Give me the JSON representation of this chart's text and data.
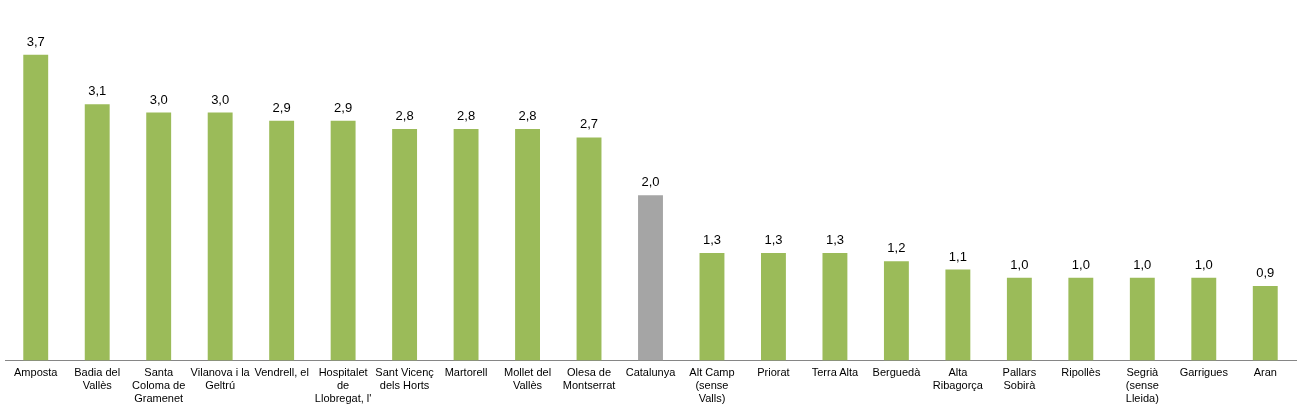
{
  "chart_data": {
    "type": "bar",
    "categories": [
      "Amposta",
      "Badia del Vallès",
      "Santa Coloma de Gramenet",
      "Vilanova i la Geltrú",
      "Vendrell, el",
      "Hospitalet de Llobregat, l'",
      "Sant Vicenç dels Horts",
      "Martorell",
      "Mollet del Vallès",
      "Olesa de Montserrat",
      "Catalunya",
      "Alt Camp (sense Valls)",
      "Priorat",
      "Terra Alta",
      "Berguedà",
      "Alta Ribagorça",
      "Pallars Sobirà",
      "Ripollès",
      "Segrià (sense Lleida)",
      "Garrigues",
      "Aran"
    ],
    "values": [
      3.7,
      3.1,
      3.0,
      3.0,
      2.9,
      2.9,
      2.8,
      2.8,
      2.8,
      2.7,
      2.0,
      1.3,
      1.3,
      1.3,
      1.2,
      1.1,
      1.0,
      1.0,
      1.0,
      1.0,
      0.9
    ],
    "value_labels": [
      "3,7",
      "3,1",
      "3,0",
      "3,0",
      "2,9",
      "2,9",
      "2,8",
      "2,8",
      "2,8",
      "2,7",
      "2,0",
      "1,3",
      "1,3",
      "1,3",
      "1,2",
      "1,1",
      "1,0",
      "1,0",
      "1,0",
      "1,0",
      "0,9"
    ],
    "colors": [
      "#9bbb59",
      "#9bbb59",
      "#9bbb59",
      "#9bbb59",
      "#9bbb59",
      "#9bbb59",
      "#9bbb59",
      "#9bbb59",
      "#9bbb59",
      "#9bbb59",
      "#a5a5a5",
      "#9bbb59",
      "#9bbb59",
      "#9bbb59",
      "#9bbb59",
      "#9bbb59",
      "#9bbb59",
      "#9bbb59",
      "#9bbb59",
      "#9bbb59",
      "#9bbb59"
    ],
    "grid": false,
    "legend": false
  }
}
